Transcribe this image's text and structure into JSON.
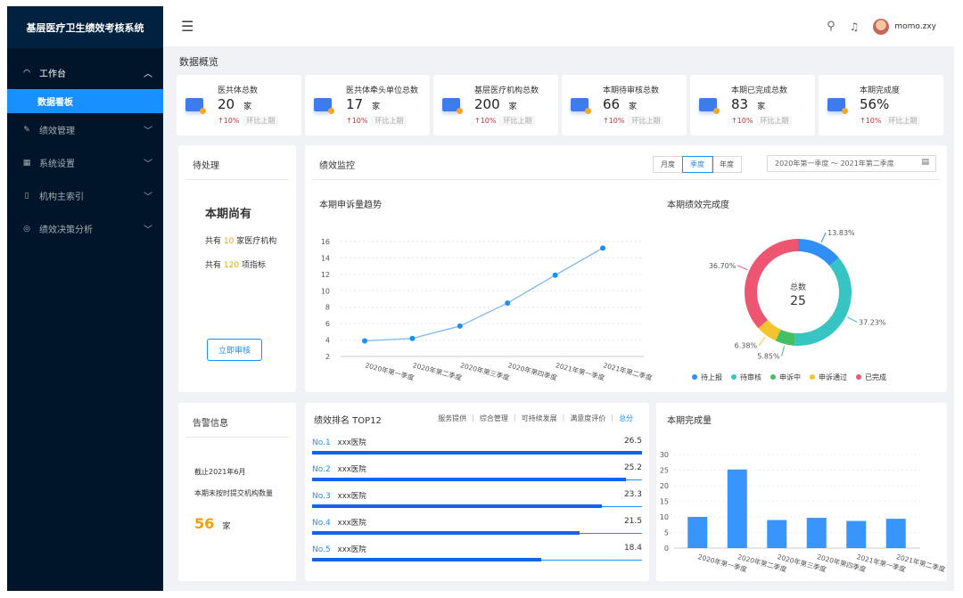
{
  "app": {
    "title": "基层医疗卫生绩效考核系统",
    "user": "momo.zxy"
  },
  "sidebar": {
    "items": [
      {
        "label": "工作台",
        "icon": "dashboard-icon",
        "expanded": true,
        "children": [
          {
            "label": "数据看板",
            "active": true
          }
        ]
      },
      {
        "label": "绩效管理",
        "icon": "edit-icon"
      },
      {
        "label": "系统设置",
        "icon": "table-icon"
      },
      {
        "label": "机构主索引",
        "icon": "book-icon"
      },
      {
        "label": "绩效决策分析",
        "icon": "check-circle-icon"
      }
    ]
  },
  "overview": {
    "title": "数据概览",
    "cards": [
      {
        "title": "医共体总数",
        "value": "20",
        "unit": "家",
        "trend": "↑10%",
        "compare": "环比上期"
      },
      {
        "title": "医共体牵头单位总数",
        "value": "17",
        "unit": "家",
        "trend": "↑10%",
        "compare": "环比上期"
      },
      {
        "title": "基层医疗机构总数",
        "value": "200",
        "unit": "家",
        "trend": "↑10%",
        "compare": "环比上期"
      },
      {
        "title": "本期待审核总数",
        "value": "66",
        "unit": "家",
        "trend": "↑10%",
        "compare": "环比上期"
      },
      {
        "title": "本期已完成总数",
        "value": "83",
        "unit": "家",
        "trend": "↑10%",
        "compare": "环比上期"
      },
      {
        "title": "本期完成度",
        "value": "56%",
        "unit": "",
        "trend": "↑10%",
        "compare": "环比上期"
      }
    ]
  },
  "pending": {
    "title": "待处理",
    "heading": "本期尚有",
    "line1_pre": "共有",
    "line1_num": "10",
    "line1_post": "家医疗机构",
    "line2_pre": "共有",
    "line2_num": "120",
    "line2_post": "项指标",
    "button": "立即审核"
  },
  "monitor": {
    "title": "绩效监控",
    "periods": [
      "月度",
      "季度",
      "年度"
    ],
    "active_period": "季度",
    "range": "2020年第一季度 ～ 2021年第二季度"
  },
  "alert": {
    "title": "告警信息",
    "date": "截止2021年6月",
    "desc": "本期未按时提交机构数量",
    "value": "56",
    "unit": "家"
  },
  "ranking": {
    "title": "绩效排名 TOP12",
    "tabs": [
      "服务提供",
      "综合管理",
      "可持续发展",
      "满意度评价",
      "总分"
    ],
    "active_tab": "总分",
    "max": 26.5,
    "rows": [
      {
        "no": "No.1",
        "name": "xxx医院",
        "score": 26.5
      },
      {
        "no": "No.2",
        "name": "xxx医院",
        "score": 25.2
      },
      {
        "no": "No.3",
        "name": "xxx医院",
        "score": 23.3
      },
      {
        "no": "No.4",
        "name": "xxx医院",
        "score": 21.5
      },
      {
        "no": "No.5",
        "name": "xxx医院",
        "score": 18.4
      }
    ]
  },
  "chart_data": [
    {
      "type": "line",
      "title": "本期申诉量趋势",
      "categories": [
        "2020年第一季度",
        "2020年第二季度",
        "2020年第三季度",
        "2020年第四季度",
        "2021年第一季度",
        "2021年第二季度"
      ],
      "values": [
        3.9,
        4.2,
        5.7,
        8.5,
        11.9,
        15.2
      ],
      "yticks": [
        2,
        4,
        6,
        8,
        10,
        12,
        14,
        16
      ],
      "ylim": [
        2,
        16
      ],
      "color": "#1890ff"
    },
    {
      "type": "pie",
      "title": "本期绩效完成度",
      "center_label": "总数",
      "center_value": "25",
      "slices": [
        {
          "name": "待上报",
          "value": 13.83,
          "label": "13.83%",
          "color": "#2f8ff5"
        },
        {
          "name": "待审核",
          "value": 37.23,
          "label": "37.23%",
          "color": "#36c5c3"
        },
        {
          "name": "申诉中",
          "value": 5.85,
          "label": "5.85%",
          "color": "#44c064"
        },
        {
          "name": "申诉通过",
          "value": 6.38,
          "label": "6.38%",
          "color": "#f5c32b"
        },
        {
          "name": "已完成",
          "value": 36.7,
          "label": "36.70%",
          "color": "#ee5570"
        }
      ],
      "legend": "bottom"
    },
    {
      "type": "bar",
      "title": "本期完成量",
      "categories": [
        "2020年第一季度",
        "2020年第二季度",
        "2020年第三季度",
        "2020年第四季度",
        "2021年第一季度",
        "2021年第二季度"
      ],
      "values": [
        10,
        25.2,
        9,
        9.7,
        8.7,
        9.4
      ],
      "yticks": [
        0,
        5,
        10,
        15,
        20,
        25,
        30
      ],
      "ylim": [
        0,
        30
      ],
      "color": "#3795fb"
    }
  ]
}
